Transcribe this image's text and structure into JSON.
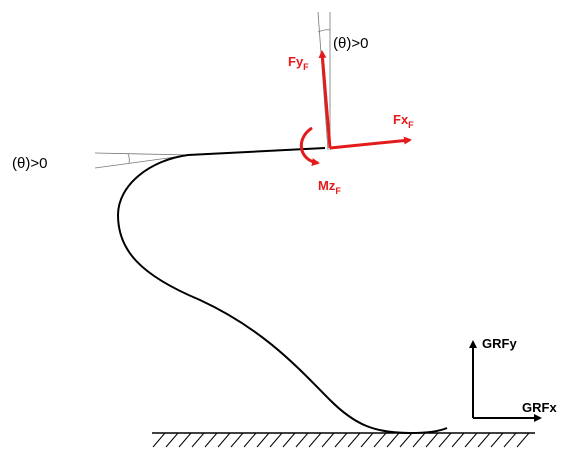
{
  "angle_labels": [
    "(θ)>0",
    "(θ)>0"
  ],
  "forces": [
    {
      "symbol": "Fy",
      "subscript": "F"
    },
    {
      "symbol": "Fx",
      "subscript": "F"
    },
    {
      "symbol": "Mz",
      "subscript": "F"
    }
  ],
  "ground_reaction": {
    "vertical": "GRFy",
    "horizontal": "GRFx"
  }
}
